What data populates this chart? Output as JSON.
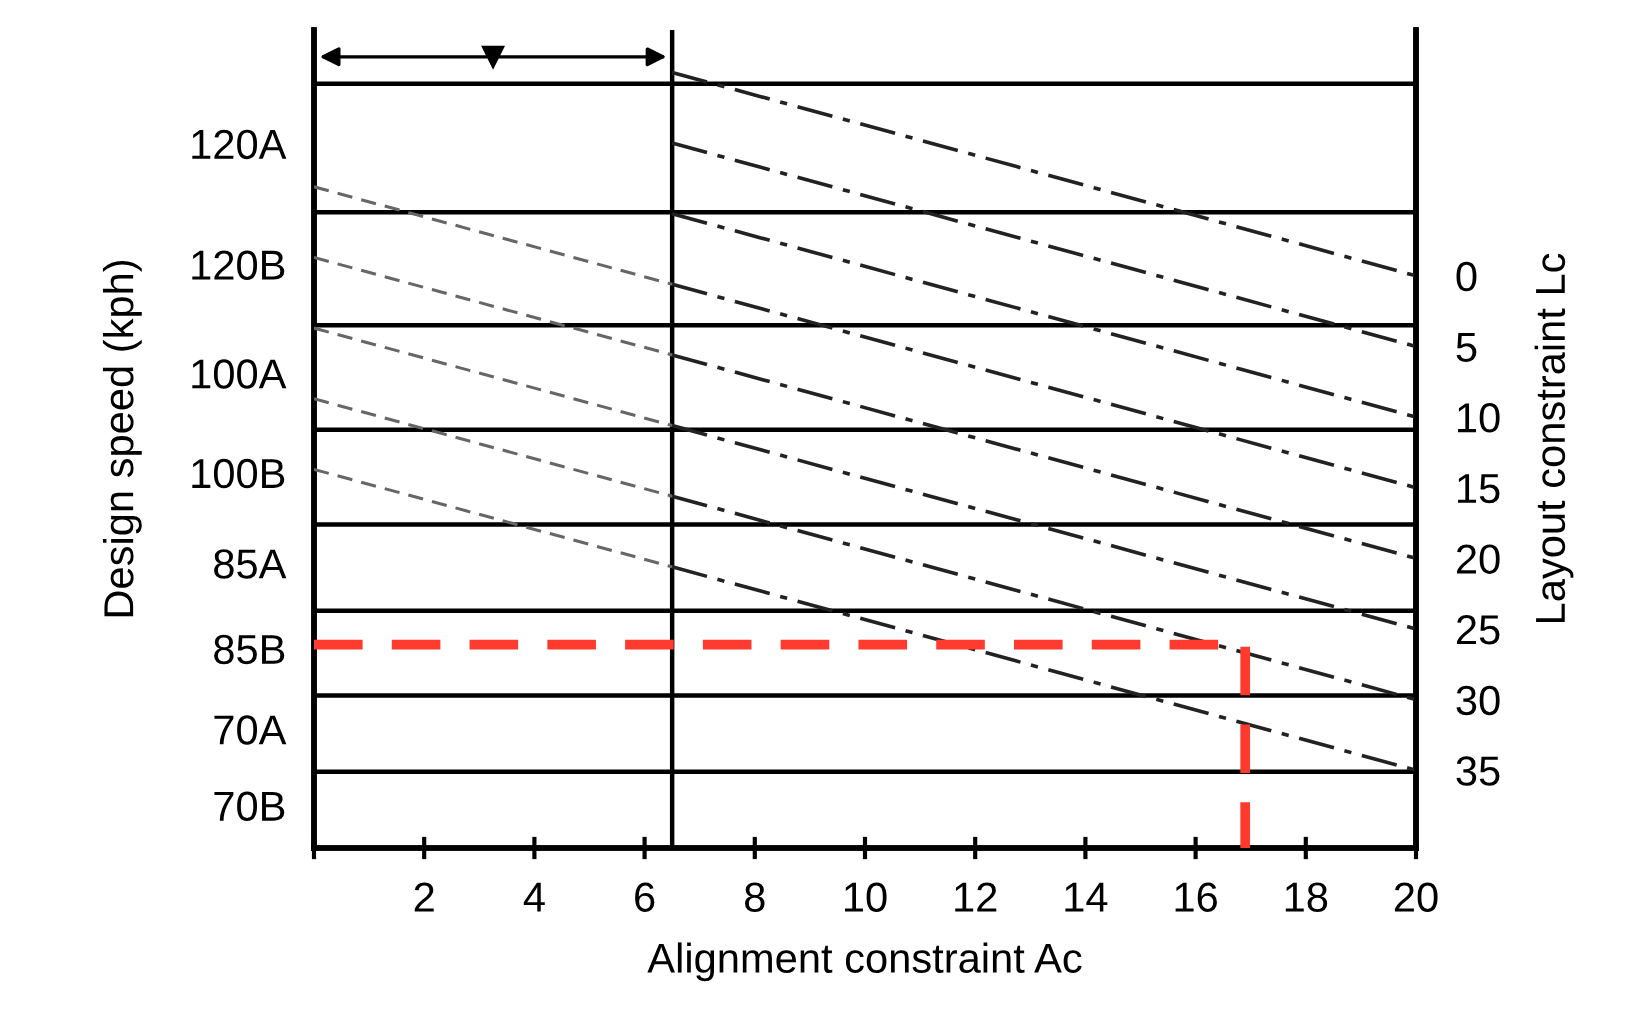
{
  "chart_data": {
    "type": "line",
    "xlabel": "Alignment constraint Ac",
    "ylabel": "Design speed (kph)",
    "y2label": "Layout constraint Lc",
    "xlim": [
      0,
      20
    ],
    "xticks": [
      {
        "value": 0,
        "label": null
      },
      2,
      4,
      6,
      8,
      10,
      12,
      14,
      16,
      18,
      20
    ],
    "y2lim": [
      40.5,
      -17.4
    ],
    "y2ticks": [
      0,
      5,
      10,
      15,
      20,
      25,
      30,
      35
    ],
    "grid": false,
    "marker": "none",
    "annotations": [
      "120A",
      "120B",
      "100A",
      "100B",
      "85A",
      "85B",
      "70A",
      "70B"
    ],
    "series": [
      {
        "color": "#222222",
        "line_style": "dashdot",
        "axis": "y2",
        "x": [
          6.5,
          20
        ],
        "values": [
          -14.4,
          0
        ]
      },
      {
        "color": "#222222",
        "line_style": "dashdot",
        "axis": "y2",
        "x": [
          6.5,
          20
        ],
        "values": [
          -9.4,
          5
        ]
      },
      {
        "color": "#222222",
        "line_style": "dashdot",
        "axis": "y2",
        "x": [
          6.5,
          20
        ],
        "values": [
          -4.4,
          10
        ]
      },
      {
        "color": "#222222",
        "line_style": "dashdot",
        "axis": "y2",
        "x": [
          6.5,
          20
        ],
        "values": [
          0.6,
          15
        ]
      },
      {
        "color": "#222222",
        "line_style": "dashdot",
        "axis": "y2",
        "x": [
          6.5,
          20
        ],
        "values": [
          5.6,
          20
        ]
      },
      {
        "color": "#222222",
        "line_style": "dashdot",
        "axis": "y2",
        "x": [
          6.5,
          20
        ],
        "values": [
          10.6,
          25
        ]
      },
      {
        "color": "#222222",
        "line_style": "dashdot",
        "axis": "y2",
        "x": [
          6.5,
          20
        ],
        "values": [
          15.6,
          30
        ]
      },
      {
        "color": "#222222",
        "line_style": "dashdot",
        "axis": "y2",
        "x": [
          6.5,
          20
        ],
        "values": [
          20.6,
          35
        ]
      },
      {
        "color": "#666666",
        "line_style": "dashed",
        "axis": "y2",
        "x": [
          0,
          6.5
        ],
        "values": [
          -6.3,
          0.6
        ]
      },
      {
        "color": "#666666",
        "line_style": "dashed",
        "axis": "y2",
        "x": [
          0,
          6.5
        ],
        "values": [
          -1.3,
          5.6
        ]
      },
      {
        "color": "#666666",
        "line_style": "dashed",
        "axis": "y2",
        "x": [
          0,
          6.5
        ],
        "values": [
          3.7,
          10.6
        ]
      },
      {
        "color": "#666666",
        "line_style": "dashed",
        "axis": "y2",
        "x": [
          0,
          6.5
        ],
        "values": [
          8.7,
          15.6
        ]
      },
      {
        "color": "#666666",
        "line_style": "dashed",
        "axis": "y2",
        "x": [
          0,
          6.5
        ],
        "values": [
          13.7,
          20.6
        ]
      },
      {
        "color": "#ff3b30",
        "line_style": "dashed",
        "axis": "y2",
        "x": [
          0,
          16.9,
          16.9
        ],
        "values": [
          26.1,
          26.1,
          40.5
        ]
      }
    ],
    "ref_lines": [
      {
        "axis": "y2",
        "value": -13.6,
        "color": "#000000"
      },
      {
        "axis": "y2",
        "value": -4.5,
        "color": "#000000"
      },
      {
        "axis": "y2",
        "value": 3.5,
        "color": "#000000"
      },
      {
        "axis": "y2",
        "value": 10.9,
        "color": "#000000"
      },
      {
        "axis": "y2",
        "value": 17.6,
        "color": "#000000"
      },
      {
        "axis": "y2",
        "value": 23.7,
        "color": "#000000"
      },
      {
        "axis": "y2",
        "value": 29.7,
        "color": "#000000"
      },
      {
        "axis": "y2",
        "value": 35.1,
        "color": "#000000"
      },
      {
        "axis": "x",
        "value": 6.5,
        "color": "#000000"
      }
    ]
  }
}
